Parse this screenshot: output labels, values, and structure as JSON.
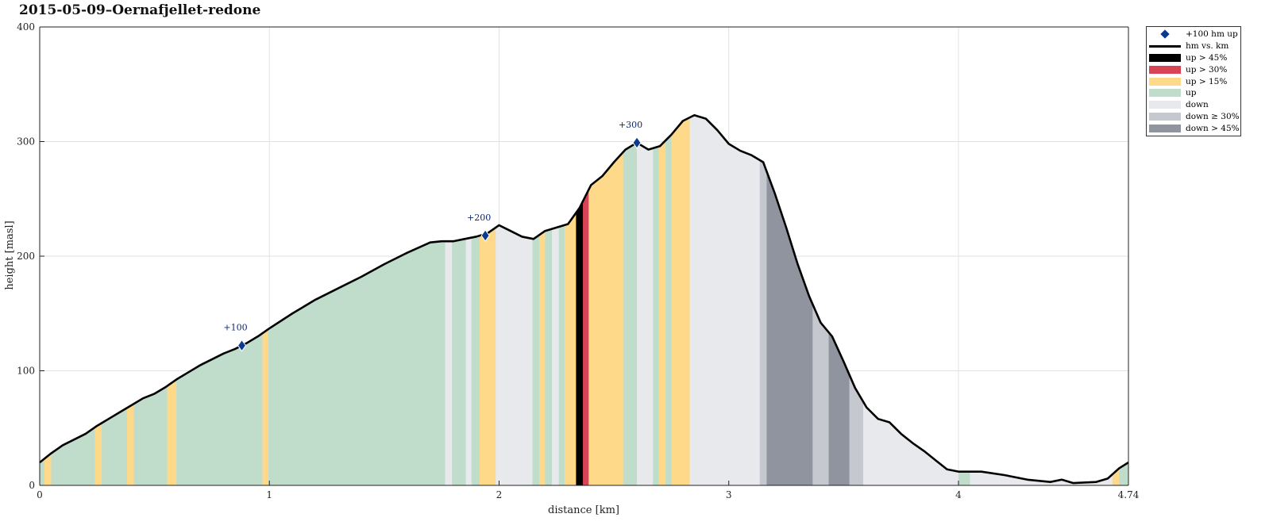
{
  "chart_data": {
    "type": "area",
    "title": "2015-05-09–Oernafjellet-redone",
    "xlabel": "distance [km]",
    "ylabel": "height [masl]",
    "xlim": [
      0,
      4.74
    ],
    "ylim": [
      0,
      400
    ],
    "x_ticks": [
      "0",
      "1",
      "2",
      "3",
      "4",
      "4.74"
    ],
    "x_tick_values": [
      0,
      1,
      2,
      3,
      4,
      4.74
    ],
    "y_ticks": [
      "0",
      "100",
      "200",
      "300",
      "400"
    ],
    "y_tick_values": [
      0,
      100,
      200,
      300,
      400
    ],
    "grid": true,
    "legend_position": "outside-top-right",
    "profile": {
      "name": "hm vs. km",
      "x": [
        0,
        0.05,
        0.1,
        0.15,
        0.2,
        0.25,
        0.3,
        0.35,
        0.4,
        0.45,
        0.5,
        0.55,
        0.6,
        0.65,
        0.7,
        0.75,
        0.8,
        0.85,
        0.9,
        0.95,
        1.0,
        1.1,
        1.2,
        1.3,
        1.4,
        1.5,
        1.6,
        1.7,
        1.75,
        1.8,
        1.85,
        1.9,
        1.95,
        2.0,
        2.05,
        2.1,
        2.15,
        2.2,
        2.25,
        2.3,
        2.35,
        2.4,
        2.45,
        2.5,
        2.55,
        2.6,
        2.65,
        2.7,
        2.75,
        2.8,
        2.85,
        2.9,
        2.95,
        3.0,
        3.05,
        3.1,
        3.15,
        3.2,
        3.25,
        3.3,
        3.35,
        3.4,
        3.45,
        3.5,
        3.55,
        3.6,
        3.65,
        3.7,
        3.75,
        3.8,
        3.85,
        3.9,
        3.95,
        4.0,
        4.05,
        4.1,
        4.2,
        4.3,
        4.4,
        4.45,
        4.5,
        4.6,
        4.65,
        4.7,
        4.74
      ],
      "y": [
        20,
        28,
        35,
        40,
        45,
        52,
        58,
        64,
        70,
        76,
        80,
        86,
        93,
        99,
        105,
        110,
        115,
        119,
        124,
        130,
        137,
        150,
        162,
        172,
        182,
        193,
        203,
        212,
        213,
        213,
        215,
        217,
        220,
        227,
        222,
        217,
        215,
        222,
        225,
        228,
        242,
        262,
        270,
        282,
        293,
        299,
        293,
        296,
        306,
        318,
        323,
        320,
        310,
        298,
        292,
        288,
        282,
        255,
        225,
        193,
        165,
        142,
        130,
        108,
        85,
        68,
        58,
        55,
        45,
        37,
        30,
        22,
        14,
        12,
        12,
        12,
        9,
        5,
        3,
        5,
        2,
        3,
        6,
        15,
        20
      ]
    },
    "segments": [
      {
        "x0": 0.0,
        "x1": 0.02,
        "class": "up"
      },
      {
        "x0": 0.02,
        "x1": 0.05,
        "class": "up > 15%"
      },
      {
        "x0": 0.05,
        "x1": 0.24,
        "class": "up"
      },
      {
        "x0": 0.24,
        "x1": 0.27,
        "class": "up > 15%"
      },
      {
        "x0": 0.27,
        "x1": 0.38,
        "class": "up"
      },
      {
        "x0": 0.38,
        "x1": 0.41,
        "class": "up > 15%"
      },
      {
        "x0": 0.41,
        "x1": 0.555,
        "class": "up"
      },
      {
        "x0": 0.555,
        "x1": 0.595,
        "class": "up > 15%"
      },
      {
        "x0": 0.595,
        "x1": 0.97,
        "class": "up"
      },
      {
        "x0": 0.97,
        "x1": 0.995,
        "class": "up > 15%"
      },
      {
        "x0": 0.995,
        "x1": 1.765,
        "class": "up"
      },
      {
        "x0": 1.765,
        "x1": 1.795,
        "class": "down"
      },
      {
        "x0": 1.795,
        "x1": 1.855,
        "class": "up"
      },
      {
        "x0": 1.855,
        "x1": 1.88,
        "class": "down"
      },
      {
        "x0": 1.88,
        "x1": 1.915,
        "class": "up"
      },
      {
        "x0": 1.915,
        "x1": 1.985,
        "class": "up > 15%"
      },
      {
        "x0": 1.985,
        "x1": 2.145,
        "class": "down"
      },
      {
        "x0": 2.145,
        "x1": 2.175,
        "class": "up"
      },
      {
        "x0": 2.175,
        "x1": 2.2,
        "class": "up > 15%"
      },
      {
        "x0": 2.2,
        "x1": 2.23,
        "class": "up"
      },
      {
        "x0": 2.23,
        "x1": 2.26,
        "class": "down"
      },
      {
        "x0": 2.26,
        "x1": 2.285,
        "class": "up"
      },
      {
        "x0": 2.285,
        "x1": 2.335,
        "class": "up > 15%"
      },
      {
        "x0": 2.335,
        "x1": 2.365,
        "class": "up > 45%"
      },
      {
        "x0": 2.365,
        "x1": 2.39,
        "class": "up > 30%"
      },
      {
        "x0": 2.39,
        "x1": 2.54,
        "class": "up > 15%"
      },
      {
        "x0": 2.54,
        "x1": 2.6,
        "class": "up"
      },
      {
        "x0": 2.6,
        "x1": 2.67,
        "class": "down"
      },
      {
        "x0": 2.67,
        "x1": 2.695,
        "class": "up"
      },
      {
        "x0": 2.695,
        "x1": 2.725,
        "class": "up > 15%"
      },
      {
        "x0": 2.725,
        "x1": 2.75,
        "class": "up"
      },
      {
        "x0": 2.75,
        "x1": 2.83,
        "class": "up > 15%"
      },
      {
        "x0": 2.83,
        "x1": 3.135,
        "class": "down"
      },
      {
        "x0": 3.135,
        "x1": 3.165,
        "class": "down ≥ 30%"
      },
      {
        "x0": 3.165,
        "x1": 3.365,
        "class": "down > 45%"
      },
      {
        "x0": 3.365,
        "x1": 3.435,
        "class": "down ≥ 30%"
      },
      {
        "x0": 3.435,
        "x1": 3.525,
        "class": "down > 45%"
      },
      {
        "x0": 3.525,
        "x1": 3.585,
        "class": "down ≥ 30%"
      },
      {
        "x0": 3.585,
        "x1": 4.0,
        "class": "down"
      },
      {
        "x0": 4.0,
        "x1": 4.05,
        "class": "up"
      },
      {
        "x0": 4.05,
        "x1": 4.67,
        "class": "down"
      },
      {
        "x0": 4.67,
        "x1": 4.7,
        "class": "up > 15%"
      },
      {
        "x0": 4.7,
        "x1": 4.74,
        "class": "up"
      }
    ],
    "markers": {
      "name": "+100 hm up",
      "points": [
        {
          "x": 0.88,
          "y": 122,
          "label": "+100"
        },
        {
          "x": 1.94,
          "y": 218,
          "label": "+200"
        },
        {
          "x": 2.6,
          "y": 299,
          "label": "+300"
        }
      ]
    },
    "legend": [
      {
        "label": "+100 hm up",
        "kind": "marker",
        "color": "#0b3a8f"
      },
      {
        "label": "hm vs. km",
        "kind": "line",
        "color": "#000000"
      },
      {
        "label": "up > 45%",
        "kind": "patch",
        "color": "#000000"
      },
      {
        "label": "up > 30%",
        "kind": "patch",
        "color": "#d94356"
      },
      {
        "label": "up > 15%",
        "kind": "patch",
        "color": "#ffd98a"
      },
      {
        "label": "up",
        "kind": "patch",
        "color": "#c0dccb"
      },
      {
        "label": "down",
        "kind": "patch",
        "color": "#e8e9ec"
      },
      {
        "label": "down ≥ 30%",
        "kind": "patch",
        "color": "#c6c8cf"
      },
      {
        "label": "down > 45%",
        "kind": "patch",
        "color": "#8f949f"
      }
    ],
    "colors": {
      "up > 45%": "#000000",
      "up > 30%": "#d94356",
      "up > 15%": "#ffd98a",
      "up": "#c0dccb",
      "down": "#e8e9ec",
      "down ≥ 30%": "#c6c8cf",
      "down > 45%": "#8f949f"
    }
  }
}
